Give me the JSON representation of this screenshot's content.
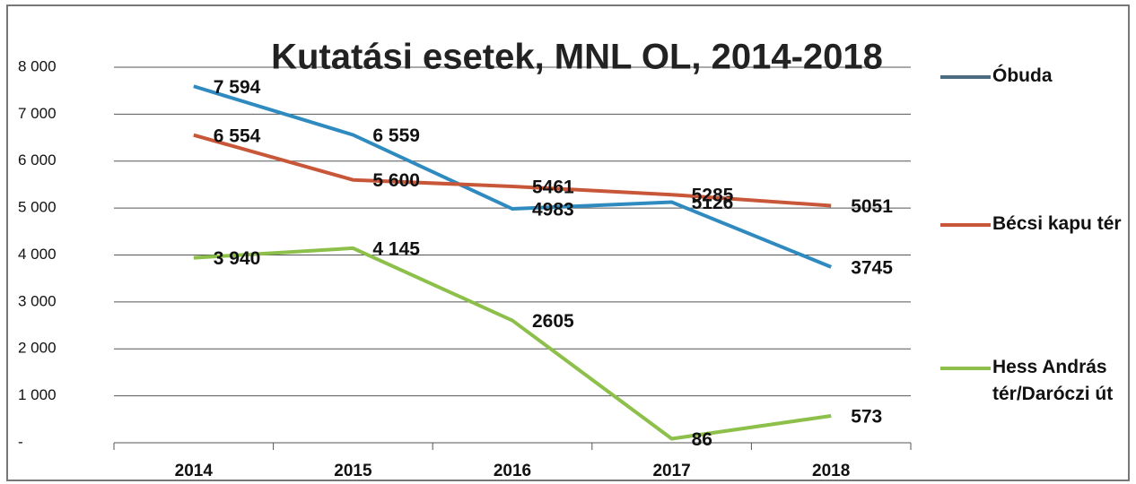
{
  "chart_data": {
    "type": "line",
    "title": "Kutatási esetek, MNL OL, 2014-2018",
    "categories": [
      "2014",
      "2015",
      "2016",
      "2017",
      "2018"
    ],
    "series": [
      {
        "name": "Óbuda",
        "color": "#2f8ac0",
        "values": [
          7594,
          6559,
          4983,
          5126,
          3745
        ],
        "value_labels": [
          "7 594",
          "6 559",
          "4983",
          "5126",
          "3745"
        ]
      },
      {
        "name": "Bécsi kapu tér",
        "color": "#c8573a",
        "values": [
          6554,
          5600,
          5461,
          5285,
          5051
        ],
        "value_labels": [
          "6 554",
          "5 600",
          "5461",
          "5285",
          "5051"
        ]
      },
      {
        "name": "Hess András tér/Daróczi út",
        "color": "#8dc04a",
        "values": [
          3940,
          4145,
          2605,
          86,
          573
        ],
        "value_labels": [
          "3 940",
          "4 145",
          "2605",
          "86",
          "573"
        ]
      }
    ],
    "ylim": [
      0,
      8000
    ],
    "yticks": [
      {
        "value": 0,
        "label": "-"
      },
      {
        "value": 1000,
        "label": "1 000"
      },
      {
        "value": 2000,
        "label": "2 000"
      },
      {
        "value": 3000,
        "label": "3 000"
      },
      {
        "value": 4000,
        "label": "4 000"
      },
      {
        "value": 5000,
        "label": "5 000"
      },
      {
        "value": 6000,
        "label": "6 000"
      },
      {
        "value": 7000,
        "label": "7 000"
      },
      {
        "value": 8000,
        "label": "8 000"
      }
    ],
    "grid": true,
    "legend": "right"
  }
}
